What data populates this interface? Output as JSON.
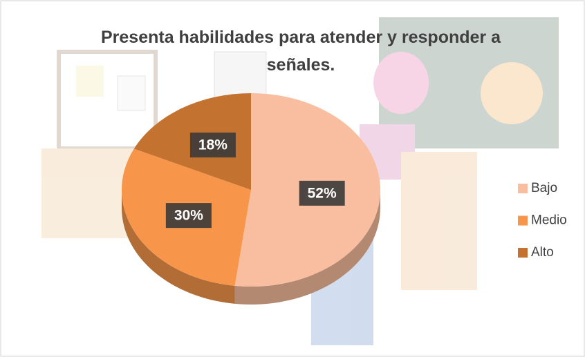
{
  "chart_data": {
    "type": "pie",
    "title": "Presenta habilidades para atender y responder a señales.",
    "categories": [
      "Bajo",
      "Medio",
      "Alto"
    ],
    "values": [
      52,
      30,
      18
    ],
    "value_labels": [
      "52%",
      "30%",
      "18%"
    ],
    "colors": [
      "#f9be9f",
      "#f7964a",
      "#c4722f"
    ],
    "legend": "right"
  }
}
